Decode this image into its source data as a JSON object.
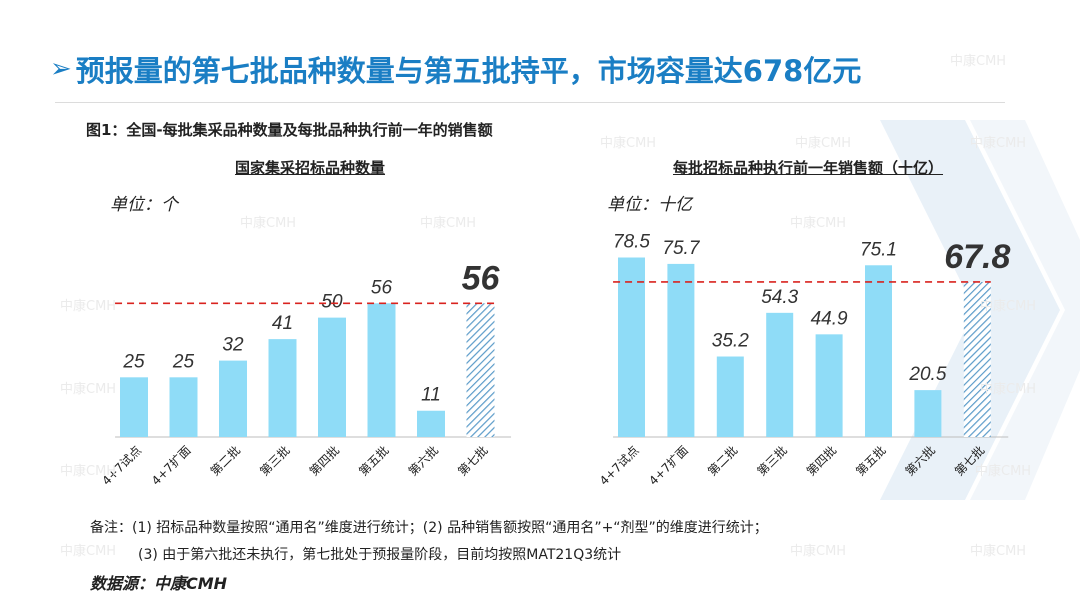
{
  "slide": {
    "title_arrow": "➢",
    "title": "预报量的第七批品种数量与第五批持平，市场容量达678亿元",
    "figure_caption": "图1：全国-每批集采品种数量及每批品种执行前一年的销售额",
    "notes_line1": "备注：(1) 招标品种数量按照“通用名”维度进行统计；(2) 品种销售额按照“通用名”+“剂型”的维度进行统计；",
    "notes_line2": "(3) 由于第六批还未执行，第七批处于预报量阶段，目前均按照MAT21Q3统计",
    "source": "数据源：中康CMH",
    "watermark": "中康CMH"
  },
  "colors": {
    "title": "#1a7ec4",
    "bar": "#8fdcf7",
    "hatch": "#5b9bc9",
    "ref_line": "#d9231f",
    "axis": "#bdbdbd",
    "watermark": "#ebebeb"
  },
  "chart_data": [
    {
      "type": "bar",
      "title": "国家集采招标品种数量",
      "unit_label": "单位：个",
      "categories": [
        "4+7试点",
        "4+7扩面",
        "第二批",
        "第三批",
        "第四批",
        "第五批",
        "第六批",
        "第七批"
      ],
      "values": [
        25,
        25,
        32,
        41,
        50,
        56,
        11,
        56
      ],
      "value_labels": [
        "25",
        "25",
        "32",
        "41",
        "50",
        "56",
        "11",
        "56"
      ],
      "highlight_index": 7,
      "highlight_style": "hatched",
      "reference_line": 56,
      "ylim": [
        0,
        80
      ],
      "grid": false
    },
    {
      "type": "bar",
      "title": "每批招标品种执行前一年销售额（十亿）",
      "unit_label": "单位：十亿",
      "categories": [
        "4+7试点",
        "4+7扩面",
        "第二批",
        "第三批",
        "第四批",
        "第五批",
        "第六批",
        "第七批"
      ],
      "values": [
        78.5,
        75.7,
        35.2,
        54.3,
        44.9,
        75.1,
        20.5,
        67.8
      ],
      "value_labels": [
        "78.5",
        "75.7",
        "35.2",
        "54.3",
        "44.9",
        "75.1",
        "20.5",
        "67.8"
      ],
      "highlight_index": 7,
      "highlight_style": "hatched",
      "reference_line": 67.8,
      "ylim": [
        0,
        82
      ],
      "grid": false
    }
  ]
}
